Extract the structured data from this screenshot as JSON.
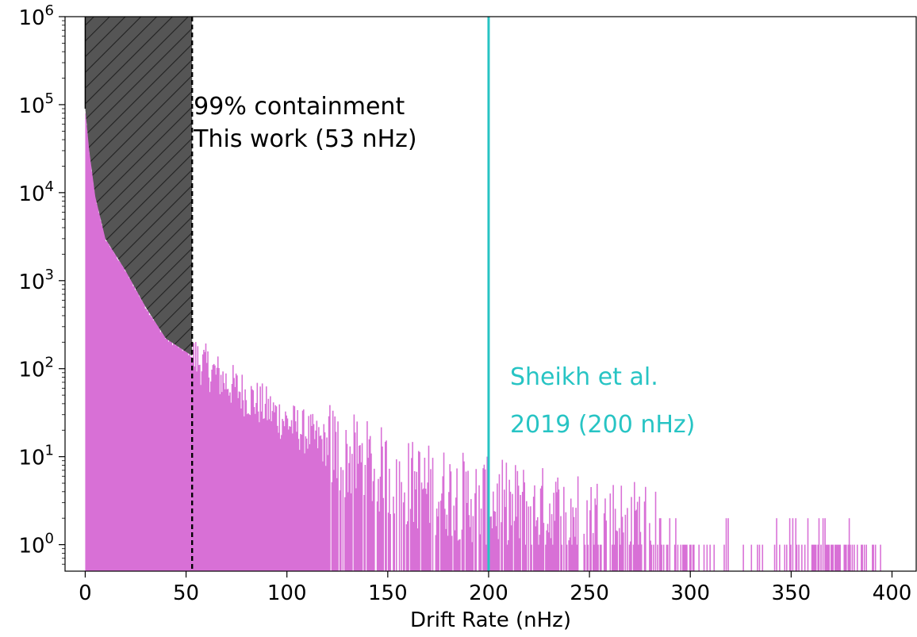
{
  "chart_data": {
    "type": "bar",
    "subtype": "histogram",
    "xlabel": "Drift Rate (nHz)",
    "ylabel": "",
    "yscale": "log",
    "xlim": [
      -10,
      412
    ],
    "ylim": [
      0.5,
      1000000
    ],
    "grid": false,
    "x_ticks": [
      0,
      50,
      100,
      150,
      200,
      250,
      300,
      350,
      400
    ],
    "x_tick_labels": [
      "0",
      "50",
      "100",
      "150",
      "200",
      "250",
      "300",
      "350",
      "400"
    ],
    "y_ticks": [
      1,
      10,
      100,
      1000,
      10000,
      100000,
      1000000
    ],
    "y_tick_labels": [
      {
        "base": "10",
        "exp": "0"
      },
      {
        "base": "10",
        "exp": "1"
      },
      {
        "base": "10",
        "exp": "2"
      },
      {
        "base": "10",
        "exp": "3"
      },
      {
        "base": "10",
        "exp": "4"
      },
      {
        "base": "10",
        "exp": "5"
      },
      {
        "base": "10",
        "exp": "6"
      }
    ],
    "histogram": {
      "x_start": 0,
      "bin_width": 0.5,
      "x_end": 395,
      "color": "#d870d6",
      "envelope": [
        {
          "x": 0,
          "count": 90000
        },
        {
          "x": 2,
          "count": 30000
        },
        {
          "x": 5,
          "count": 9000
        },
        {
          "x": 10,
          "count": 3000
        },
        {
          "x": 20,
          "count": 1300
        },
        {
          "x": 30,
          "count": 500
        },
        {
          "x": 40,
          "count": 220
        },
        {
          "x": 53,
          "count": 140
        },
        {
          "x": 70,
          "count": 70
        },
        {
          "x": 100,
          "count": 25
        },
        {
          "x": 130,
          "count": 10
        },
        {
          "x": 160,
          "count": 5
        },
        {
          "x": 200,
          "count": 3
        },
        {
          "x": 250,
          "count": 2
        },
        {
          "x": 283,
          "count": 1.6
        },
        {
          "x": 330,
          "count": 1.1
        },
        {
          "x": 395,
          "count": 1.1
        }
      ]
    },
    "containment": {
      "x": 53,
      "range": [
        0,
        53
      ],
      "fill_color": "#555555",
      "hatch": "diagonal",
      "line_style": "dashed",
      "label_line1": "99% containment",
      "label_line2": "This work (53 nHz)",
      "label_color": "#000000"
    },
    "reference_line": {
      "x": 200,
      "color": "#27c4c4",
      "label_line1": "Sheikh et al.",
      "label_line2": "2019 (200 nHz)"
    }
  }
}
